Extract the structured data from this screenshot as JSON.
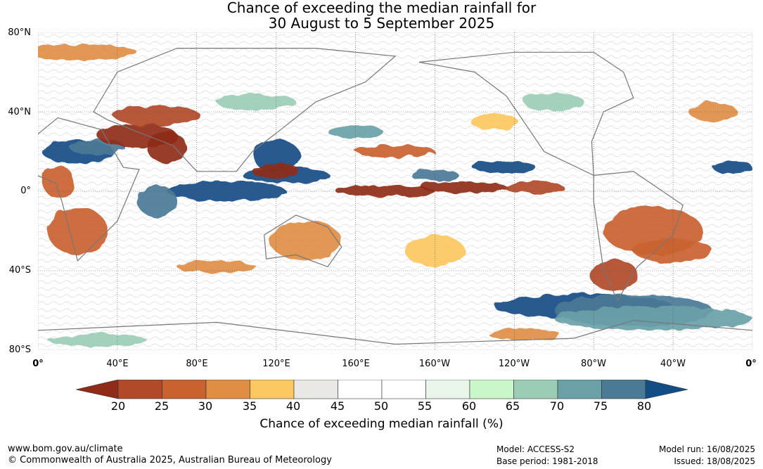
{
  "title": {
    "line1": "Chance of exceeding the median rainfall for",
    "line2": "30 August to 5 September 2025"
  },
  "map": {
    "lat_labels": [
      "80°N",
      "40°N",
      "0°",
      "40°S",
      "80°S"
    ],
    "lon_labels": [
      "0°",
      "40°E",
      "80°E",
      "120°E",
      "160°E",
      "160°W",
      "120°W",
      "80°W",
      "40°W",
      "0°"
    ]
  },
  "colorbar": {
    "ticks": [
      "20",
      "25",
      "30",
      "35",
      "40",
      "45",
      "50",
      "55",
      "60",
      "65",
      "70",
      "75",
      "80"
    ],
    "label": "Chance of exceeding median rainfall (%)",
    "colors": [
      "#8f2b17",
      "#b04a27",
      "#c9622f",
      "#e08e44",
      "#fcc860",
      "#e9e8e4",
      "#ffffff",
      "#ffffff",
      "#eaf5ea",
      "#c9f7c9",
      "#9bcdb6",
      "#6aa1a9",
      "#4b7a97",
      "#134d86"
    ],
    "dry_colors": [
      "#8f2b17",
      "#b04a27",
      "#c9622f",
      "#e08e44",
      "#fcc860"
    ],
    "wet_colors": [
      "#c9f7c9",
      "#9bcdb6",
      "#6aa1a9",
      "#4b7a97",
      "#134d86"
    ]
  },
  "footer": {
    "url": "www.bom.gov.au/climate",
    "copyright": "© Commonwealth of Australia 2025, Australian Bureau of Meteorology",
    "model": "Model: ACCESS-S2",
    "base_period": "Base period: 1981-2018",
    "model_run": "Model run: 16/08/2025",
    "issued": "Issued: 18/08/2025"
  }
}
